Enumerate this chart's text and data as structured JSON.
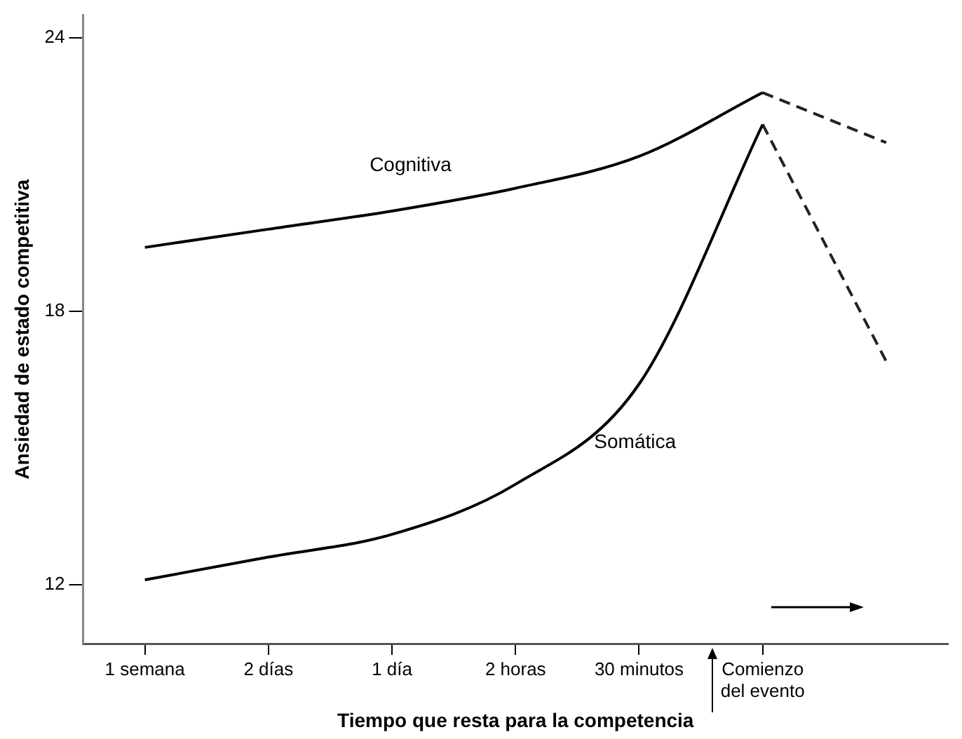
{
  "chart_data": {
    "type": "line",
    "xlabel": "Tiempo que resta para la competencia",
    "ylabel": "Ansiedad de estado competitiva",
    "categories": [
      "1 semana",
      "2 días",
      "1 día",
      "2 horas",
      "30 minutos",
      "Comienzo del evento",
      null
    ],
    "series": [
      {
        "name": "Cognitiva",
        "color": "#000000",
        "line_style": "solid",
        "values": [
          19.4,
          19.8,
          20.2,
          20.7,
          21.4,
          22.8,
          null
        ]
      },
      {
        "name": "Somática",
        "color": "#000000",
        "line_style": "solid",
        "values": [
          12.1,
          12.6,
          13.1,
          14.2,
          16.4,
          22.1,
          null
        ]
      },
      {
        "color": "#222222",
        "line_style": "dashed",
        "values": [
          null,
          null,
          null,
          null,
          null,
          22.8,
          21.7
        ]
      },
      {
        "color": "#222222",
        "line_style": "dashed",
        "values": [
          null,
          null,
          null,
          null,
          null,
          22.1,
          16.9
        ]
      }
    ],
    "ylim": [
      10.7,
      24.5
    ],
    "yticks": [
      12,
      18,
      24
    ],
    "grid": false,
    "legend": false,
    "marker": "none"
  }
}
